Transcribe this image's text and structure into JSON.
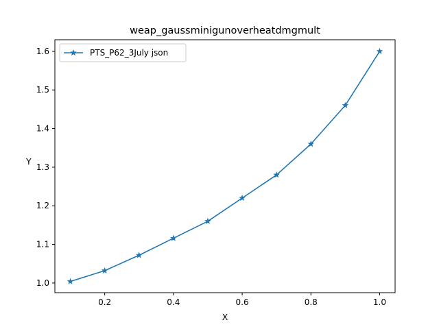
{
  "chart_data": {
    "type": "line",
    "title": "weap_gaussminigunoverheatdmgmult",
    "xlabel": "X",
    "ylabel": "Y",
    "xlim": [
      0.055,
      1.045
    ],
    "ylim": [
      0.975,
      1.63
    ],
    "xticks": [
      {
        "value": 0.2,
        "label": "0.2"
      },
      {
        "value": 0.4,
        "label": "0.4"
      },
      {
        "value": 0.6,
        "label": "0.6"
      },
      {
        "value": 0.8,
        "label": "0.8"
      },
      {
        "value": 1.0,
        "label": "1.0"
      }
    ],
    "yticks": [
      {
        "value": 1.0,
        "label": "1.0"
      },
      {
        "value": 1.1,
        "label": "1.1"
      },
      {
        "value": 1.2,
        "label": "1.2"
      },
      {
        "value": 1.3,
        "label": "1.3"
      },
      {
        "value": 1.4,
        "label": "1.4"
      },
      {
        "value": 1.5,
        "label": "1.5"
      },
      {
        "value": 1.6,
        "label": "1.6"
      }
    ],
    "grid": false,
    "legend_position": "top-left",
    "series": [
      {
        "name": "PTS_P62_3July json",
        "color": "#1f77b4",
        "marker": "star",
        "x": [
          0.1,
          0.2,
          0.3,
          0.4,
          0.5,
          0.6,
          0.7,
          0.8,
          0.9,
          1.0
        ],
        "y": [
          1.004,
          1.032,
          1.072,
          1.116,
          1.16,
          1.22,
          1.28,
          1.36,
          1.46,
          1.6
        ]
      }
    ]
  }
}
